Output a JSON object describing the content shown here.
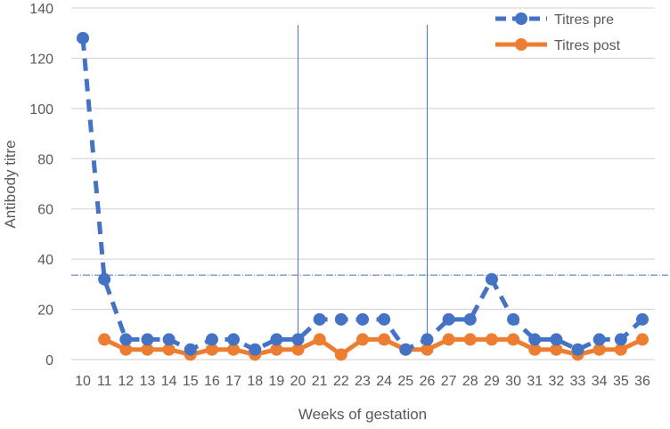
{
  "chart_data": {
    "type": "line",
    "title": "",
    "xlabel": "Weeks of gestation",
    "ylabel": "Antibody titre",
    "ylim": [
      0,
      140
    ],
    "yticks": [
      0,
      20,
      40,
      60,
      80,
      100,
      120,
      140
    ],
    "grid": true,
    "legend_position": "top-right",
    "categories": [
      "10",
      "11",
      "12",
      "13",
      "14",
      "15",
      "16",
      "17",
      "18",
      "19",
      "20",
      "21",
      "22",
      "23",
      "24",
      "25",
      "26",
      "27",
      "28",
      "29",
      "30",
      "31",
      "32",
      "33",
      "34",
      "35",
      "36"
    ],
    "series": [
      {
        "name": "Titres pre",
        "color": "#4472C4",
        "style": "dashed",
        "values": [
          128,
          32,
          8,
          8,
          8,
          4,
          8,
          8,
          4,
          8,
          8,
          16,
          16,
          16,
          16,
          4,
          8,
          16,
          16,
          32,
          16,
          8,
          8,
          4,
          8,
          8,
          16
        ]
      },
      {
        "name": "Titres post",
        "color": "#ED7D31",
        "style": "solid",
        "values": [
          null,
          8,
          4,
          4,
          4,
          2,
          4,
          4,
          2,
          4,
          4,
          8,
          2,
          8,
          8,
          4,
          4,
          8,
          8,
          8,
          8,
          4,
          4,
          2,
          4,
          4,
          8
        ]
      }
    ],
    "reference_lines": {
      "vertical_at_weeks": [
        "20",
        "26"
      ],
      "horizontal_at_titre": 34,
      "color": "#4472C4"
    }
  }
}
